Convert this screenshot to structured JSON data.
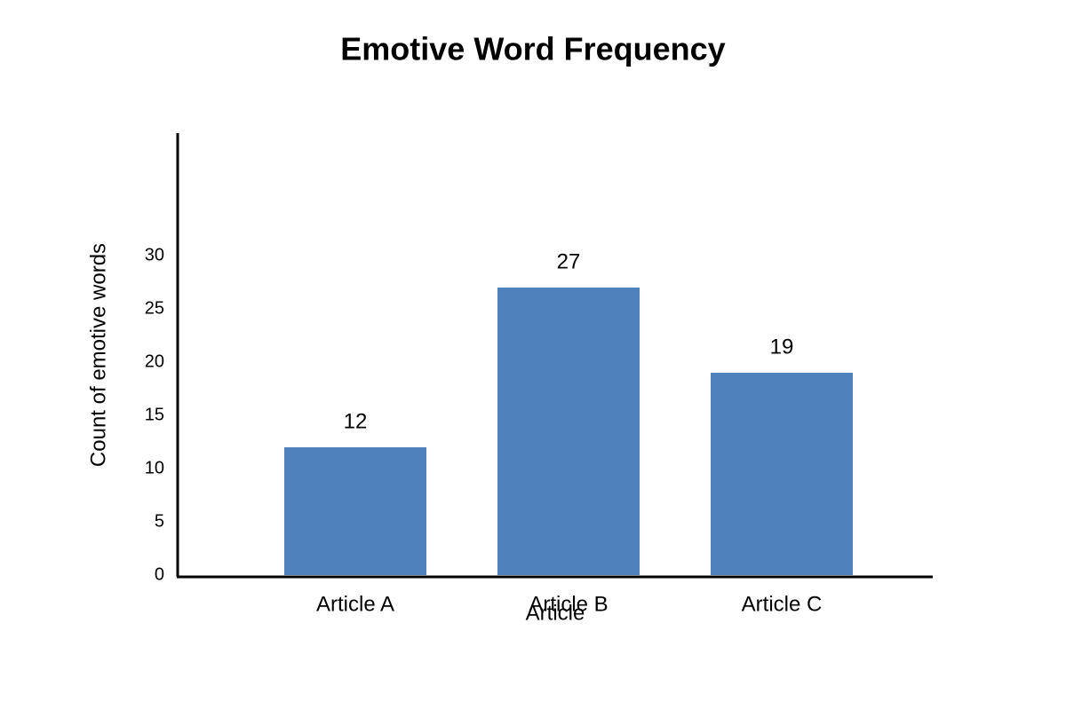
{
  "chart_data": {
    "type": "bar",
    "title": "Emotive Word Frequency",
    "x_label": "Article",
    "y_label": "Count of emotive words",
    "categories": [
      "Article A",
      "Article B",
      "Article C"
    ],
    "values": [
      12,
      27,
      19
    ],
    "color": "#4f81bd",
    "ylim": [
      0,
      41.5
    ],
    "yticks": [
      0,
      5,
      10,
      15,
      20,
      25,
      30
    ],
    "grid": false
  }
}
